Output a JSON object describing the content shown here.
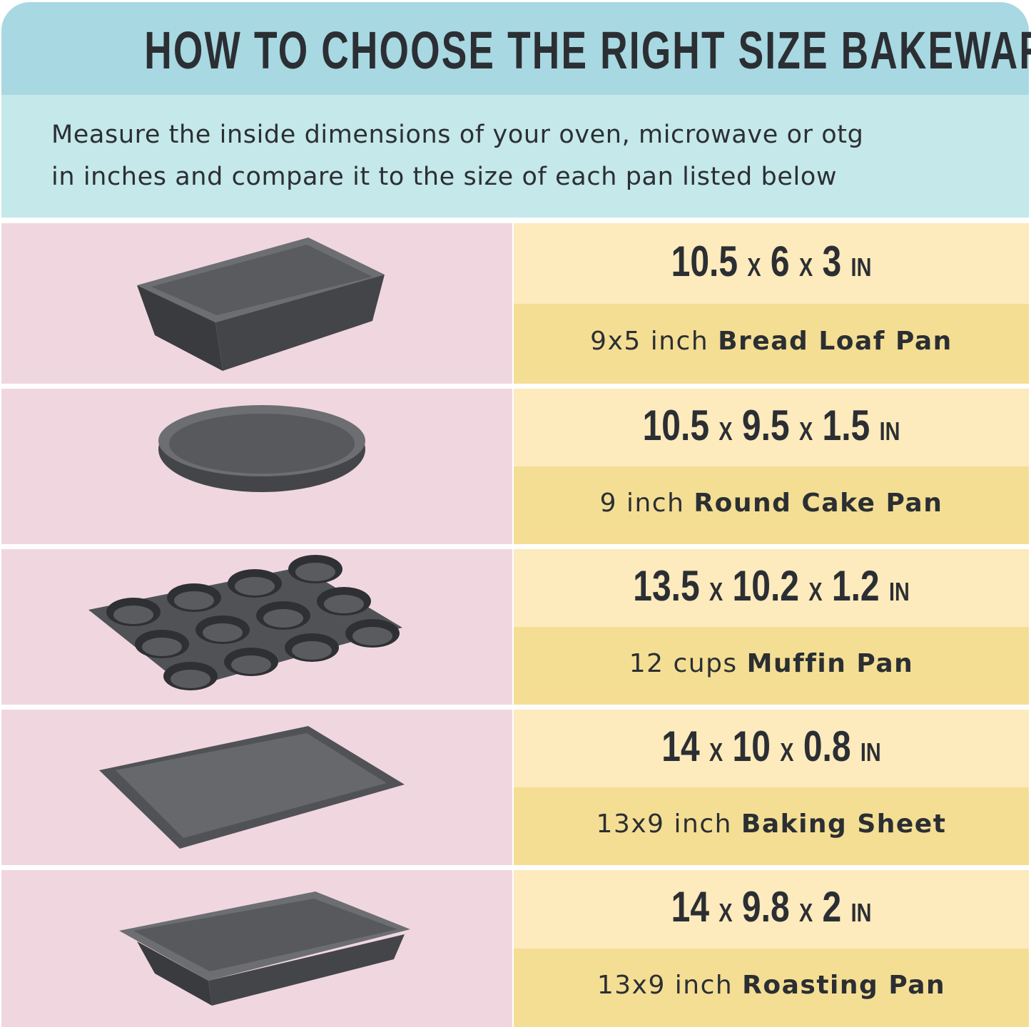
{
  "header": {
    "title": "HOW TO CHOOSE THE RIGHT SIZE BAKEWARE",
    "subtitle_line1": "Measure the inside dimensions of your oven, microwave or otg",
    "subtitle_line2": "in inches and compare it to the size of each pan listed below"
  },
  "colors": {
    "header": "#a8d8e2",
    "subheader": "#c5e8ea",
    "pink": "#f0d7df",
    "yellow_light": "#fdeabd",
    "yellow_dark": "#f4de94",
    "text": "#2b2f33",
    "pan": "#4a4b4e"
  },
  "rows": [
    {
      "icon": "loaf-pan-icon",
      "d1": "10.5",
      "d2": "6",
      "d3": "3",
      "unit": "IN",
      "sep": "X",
      "size": "9x5 inch",
      "name": "Bread Loaf Pan"
    },
    {
      "icon": "round-cake-pan-icon",
      "d1": "10.5",
      "d2": "9.5",
      "d3": "1.5",
      "unit": "IN",
      "sep": "X",
      "size": "9 inch",
      "name": "Round Cake Pan"
    },
    {
      "icon": "muffin-pan-icon",
      "d1": "13.5",
      "d2": "10.2",
      "d3": "1.2",
      "unit": "IN",
      "sep": "X",
      "size": "12 cups",
      "name": "Muffin Pan"
    },
    {
      "icon": "baking-sheet-icon",
      "d1": "14",
      "d2": "10",
      "d3": "0.8",
      "unit": "IN",
      "sep": "X",
      "size": "13x9 inch",
      "name": "Baking Sheet"
    },
    {
      "icon": "roasting-pan-icon",
      "d1": "14",
      "d2": "9.8",
      "d3": "2",
      "unit": "IN",
      "sep": "X",
      "size": "13x9 inch",
      "name": "Roasting Pan"
    }
  ]
}
